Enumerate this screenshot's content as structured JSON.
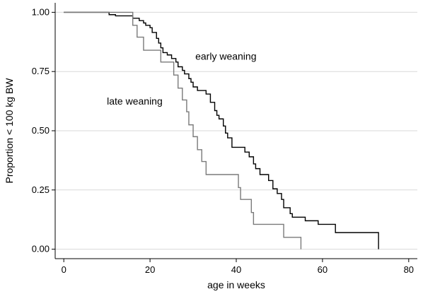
{
  "chart_data": {
    "type": "line",
    "xlabel": "age in weeks",
    "ylabel": "Proportion < 100 kg BW",
    "xlim": [
      -2,
      82
    ],
    "ylim": [
      -0.04,
      1.04
    ],
    "x_ticks": [
      0,
      20,
      40,
      60,
      80
    ],
    "y_ticks": [
      0.0,
      0.25,
      0.5,
      0.75,
      1.0
    ],
    "x_tick_labels": [
      "0",
      "20",
      "40",
      "60",
      "80"
    ],
    "y_tick_labels": [
      "0.00",
      "0.25",
      "0.50",
      "0.75",
      "1.00"
    ],
    "grid": "horizontal",
    "step": true,
    "series": [
      {
        "name": "early weaning",
        "color": "#000000",
        "points": [
          [
            0,
            1.0
          ],
          [
            10.5,
            1.0
          ],
          [
            10.5,
            0.99
          ],
          [
            12,
            0.99
          ],
          [
            12,
            0.985
          ],
          [
            16,
            0.985
          ],
          [
            16,
            0.975
          ],
          [
            17.5,
            0.975
          ],
          [
            17.5,
            0.965
          ],
          [
            18.5,
            0.965
          ],
          [
            18.5,
            0.955
          ],
          [
            19,
            0.955
          ],
          [
            19,
            0.945
          ],
          [
            20,
            0.945
          ],
          [
            20,
            0.935
          ],
          [
            20.5,
            0.935
          ],
          [
            20.5,
            0.915
          ],
          [
            21.5,
            0.915
          ],
          [
            21.5,
            0.89
          ],
          [
            22,
            0.89
          ],
          [
            22,
            0.87
          ],
          [
            22.5,
            0.87
          ],
          [
            22.5,
            0.85
          ],
          [
            23,
            0.85
          ],
          [
            23,
            0.83
          ],
          [
            24,
            0.83
          ],
          [
            24,
            0.82
          ],
          [
            25,
            0.82
          ],
          [
            25,
            0.805
          ],
          [
            26,
            0.805
          ],
          [
            26,
            0.79
          ],
          [
            26.5,
            0.79
          ],
          [
            26.5,
            0.77
          ],
          [
            27.5,
            0.77
          ],
          [
            27.5,
            0.755
          ],
          [
            28,
            0.755
          ],
          [
            28,
            0.74
          ],
          [
            29,
            0.74
          ],
          [
            29,
            0.72
          ],
          [
            29.5,
            0.72
          ],
          [
            29.5,
            0.705
          ],
          [
            30,
            0.705
          ],
          [
            30,
            0.685
          ],
          [
            31,
            0.685
          ],
          [
            31,
            0.67
          ],
          [
            33,
            0.67
          ],
          [
            33,
            0.655
          ],
          [
            34,
            0.655
          ],
          [
            34,
            0.62
          ],
          [
            35,
            0.62
          ],
          [
            35,
            0.585
          ],
          [
            35.5,
            0.585
          ],
          [
            35.5,
            0.565
          ],
          [
            36,
            0.565
          ],
          [
            36,
            0.55
          ],
          [
            37,
            0.55
          ],
          [
            37,
            0.52
          ],
          [
            37.5,
            0.52
          ],
          [
            37.5,
            0.49
          ],
          [
            38,
            0.49
          ],
          [
            38,
            0.47
          ],
          [
            39,
            0.47
          ],
          [
            39,
            0.43
          ],
          [
            42,
            0.43
          ],
          [
            42,
            0.41
          ],
          [
            43,
            0.41
          ],
          [
            43,
            0.39
          ],
          [
            44,
            0.39
          ],
          [
            44,
            0.36
          ],
          [
            44.5,
            0.36
          ],
          [
            44.5,
            0.34
          ],
          [
            45.5,
            0.34
          ],
          [
            45.5,
            0.315
          ],
          [
            47.5,
            0.315
          ],
          [
            47.5,
            0.29
          ],
          [
            48.5,
            0.29
          ],
          [
            48.5,
            0.255
          ],
          [
            49.5,
            0.255
          ],
          [
            49.5,
            0.235
          ],
          [
            50.5,
            0.235
          ],
          [
            50.5,
            0.21
          ],
          [
            51,
            0.21
          ],
          [
            51,
            0.175
          ],
          [
            52.5,
            0.175
          ],
          [
            52.5,
            0.15
          ],
          [
            53,
            0.15
          ],
          [
            53,
            0.135
          ],
          [
            56,
            0.135
          ],
          [
            56,
            0.12
          ],
          [
            59,
            0.12
          ],
          [
            59,
            0.105
          ],
          [
            63,
            0.105
          ],
          [
            63,
            0.07
          ],
          [
            73,
            0.07
          ],
          [
            73,
            0.0
          ]
        ]
      },
      {
        "name": "late weaning",
        "color": "#7a7a7a",
        "points": [
          [
            0,
            1.0
          ],
          [
            16,
            1.0
          ],
          [
            16,
            0.945
          ],
          [
            17,
            0.945
          ],
          [
            17,
            0.895
          ],
          [
            18.5,
            0.895
          ],
          [
            18.5,
            0.84
          ],
          [
            22.5,
            0.84
          ],
          [
            22.5,
            0.79
          ],
          [
            25.5,
            0.79
          ],
          [
            25.5,
            0.735
          ],
          [
            26.5,
            0.735
          ],
          [
            26.5,
            0.68
          ],
          [
            27.5,
            0.68
          ],
          [
            27.5,
            0.63
          ],
          [
            28.5,
            0.63
          ],
          [
            28.5,
            0.58
          ],
          [
            29,
            0.58
          ],
          [
            29,
            0.525
          ],
          [
            30,
            0.525
          ],
          [
            30,
            0.475
          ],
          [
            31,
            0.475
          ],
          [
            31,
            0.42
          ],
          [
            32,
            0.42
          ],
          [
            32,
            0.37
          ],
          [
            33,
            0.37
          ],
          [
            33,
            0.315
          ],
          [
            40.5,
            0.315
          ],
          [
            40.5,
            0.26
          ],
          [
            41,
            0.26
          ],
          [
            41,
            0.21
          ],
          [
            43.5,
            0.21
          ],
          [
            43.5,
            0.155
          ],
          [
            44,
            0.155
          ],
          [
            44,
            0.105
          ],
          [
            51,
            0.105
          ],
          [
            51,
            0.05
          ],
          [
            55,
            0.05
          ],
          [
            55,
            0.0
          ]
        ]
      }
    ],
    "annotations": [
      {
        "text": "early weaning",
        "x": 30.5,
        "y": 0.8
      },
      {
        "text": "late weaning",
        "x": 10,
        "y": 0.61
      }
    ]
  }
}
